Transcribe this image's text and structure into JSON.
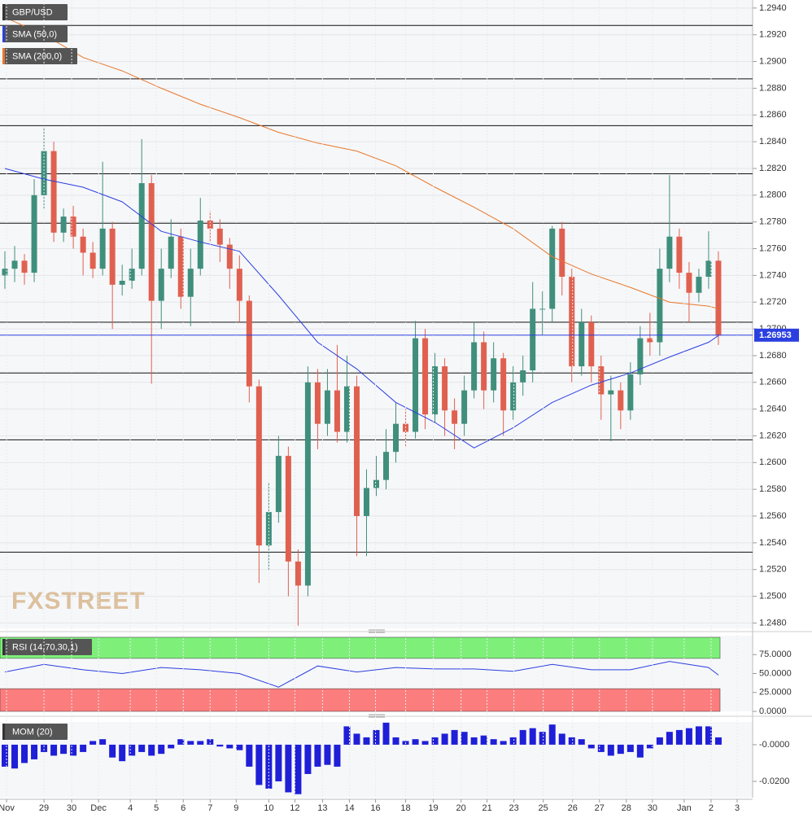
{
  "chart_data": [
    {
      "type": "candlestick",
      "title": "GBP/USD",
      "watermark": "FXSTREET",
      "xlim": [
        0,
        77
      ],
      "ylim": [
        1.2476,
        1.2946
      ],
      "grid": true,
      "yticks": [
        {
          "value": 1.294,
          "label": "1.2940"
        },
        {
          "value": 1.292,
          "label": "1.2920"
        },
        {
          "value": 1.29,
          "label": "1.2900"
        },
        {
          "value": 1.288,
          "label": "1.2880"
        },
        {
          "value": 1.286,
          "label": "1.2860"
        },
        {
          "value": 1.284,
          "label": "1.2840"
        },
        {
          "value": 1.282,
          "label": "1.2820"
        },
        {
          "value": 1.28,
          "label": "1.2800"
        },
        {
          "value": 1.278,
          "label": "1.2780"
        },
        {
          "value": 1.276,
          "label": "1.2760"
        },
        {
          "value": 1.274,
          "label": "1.2740"
        },
        {
          "value": 1.272,
          "label": "1.2720"
        },
        {
          "value": 1.27,
          "label": "1.2700"
        },
        {
          "value": 1.268,
          "label": "1.2680"
        },
        {
          "value": 1.266,
          "label": "1.2660"
        },
        {
          "value": 1.264,
          "label": "1.2640"
        },
        {
          "value": 1.262,
          "label": "1.2620"
        },
        {
          "value": 1.26,
          "label": "1.2600"
        },
        {
          "value": 1.258,
          "label": "1.2580"
        },
        {
          "value": 1.256,
          "label": "1.2560"
        },
        {
          "value": 1.254,
          "label": "1.2540"
        },
        {
          "value": 1.252,
          "label": "1.2520"
        },
        {
          "value": 1.25,
          "label": "1.2500"
        },
        {
          "value": 1.248,
          "label": "1.2480"
        }
      ],
      "up_color": "#3f8f7c",
      "down_color": "#e0604f",
      "candles": [
        [
          1.274,
          1.2758,
          1.273,
          1.2745
        ],
        [
          1.2745,
          1.2762,
          1.2735,
          1.2751
        ],
        [
          1.2751,
          1.2756,
          1.2733,
          1.2742
        ],
        [
          1.2742,
          1.2812,
          1.2735,
          1.28
        ],
        [
          1.28,
          1.2851,
          1.279,
          1.2833
        ],
        [
          1.2833,
          1.284,
          1.2765,
          1.2772
        ],
        [
          1.2772,
          1.279,
          1.2765,
          1.2784
        ],
        [
          1.2784,
          1.2792,
          1.276,
          1.2769
        ],
        [
          1.2769,
          1.2775,
          1.274,
          1.2757
        ],
        [
          1.2757,
          1.2765,
          1.2738,
          1.2745
        ],
        [
          1.2745,
          1.2825,
          1.274,
          1.2775
        ],
        [
          1.2775,
          1.278,
          1.27,
          1.2733
        ],
        [
          1.2733,
          1.2748,
          1.2725,
          1.2736
        ],
        [
          1.2736,
          1.276,
          1.273,
          1.2745
        ],
        [
          1.2745,
          1.2842,
          1.274,
          1.2809
        ],
        [
          1.2809,
          1.2815,
          1.2659,
          1.2721
        ],
        [
          1.2721,
          1.276,
          1.27,
          1.2745
        ],
        [
          1.2745,
          1.2782,
          1.2738,
          1.2769
        ],
        [
          1.2769,
          1.2775,
          1.2715,
          1.2724
        ],
        [
          1.2724,
          1.276,
          1.2702,
          1.2745
        ],
        [
          1.2745,
          1.2798,
          1.274,
          1.2781
        ],
        [
          1.2781,
          1.2788,
          1.2765,
          1.2775
        ],
        [
          1.2775,
          1.2782,
          1.275,
          1.2763
        ],
        [
          1.2763,
          1.2768,
          1.273,
          1.2745
        ],
        [
          1.2745,
          1.2755,
          1.2705,
          1.2721
        ],
        [
          1.2721,
          1.2725,
          1.2645,
          1.2657
        ],
        [
          1.2657,
          1.2662,
          1.251,
          1.2538
        ],
        [
          1.2538,
          1.2585,
          1.252,
          1.2563
        ],
        [
          1.2563,
          1.262,
          1.2555,
          1.2605
        ],
        [
          1.2605,
          1.2612,
          1.25,
          1.2526
        ],
        [
          1.2526,
          1.2535,
          1.2478,
          1.2508
        ],
        [
          1.2508,
          1.2672,
          1.25,
          1.266
        ],
        [
          1.266,
          1.267,
          1.261,
          1.2629
        ],
        [
          1.2629,
          1.267,
          1.262,
          1.2654
        ],
        [
          1.2654,
          1.2688,
          1.2615,
          1.2623
        ],
        [
          1.2623,
          1.268,
          1.2615,
          1.2657
        ],
        [
          1.2657,
          1.2665,
          1.253,
          1.256
        ],
        [
          1.256,
          1.2595,
          1.253,
          1.2581
        ],
        [
          1.2581,
          1.2605,
          1.2575,
          1.2587
        ],
        [
          1.2587,
          1.2625,
          1.258,
          1.2608
        ],
        [
          1.2608,
          1.2645,
          1.26,
          1.2629
        ],
        [
          1.2629,
          1.264,
          1.2612,
          1.2623
        ],
        [
          1.2623,
          1.2706,
          1.2618,
          1.2693
        ],
        [
          1.2693,
          1.27,
          1.2625,
          1.2636
        ],
        [
          1.2636,
          1.2682,
          1.263,
          1.2672
        ],
        [
          1.2672,
          1.2678,
          1.262,
          1.2639
        ],
        [
          1.2639,
          1.2648,
          1.261,
          1.2629
        ],
        [
          1.2629,
          1.2665,
          1.262,
          1.2654
        ],
        [
          1.2654,
          1.2705,
          1.2648,
          1.269
        ],
        [
          1.269,
          1.2698,
          1.264,
          1.2654
        ],
        [
          1.2654,
          1.269,
          1.2645,
          1.2678
        ],
        [
          1.2678,
          1.2682,
          1.262,
          1.2639
        ],
        [
          1.2639,
          1.2672,
          1.2632,
          1.266
        ],
        [
          1.266,
          1.268,
          1.265,
          1.2669
        ],
        [
          1.2669,
          1.2735,
          1.266,
          1.2715
        ],
        [
          1.2715,
          1.2728,
          1.2695,
          1.2715
        ],
        [
          1.2715,
          1.2777,
          1.2705,
          1.2775
        ],
        [
          1.2775,
          1.278,
          1.2725,
          1.2739
        ],
        [
          1.2739,
          1.2745,
          1.266,
          1.2672
        ],
        [
          1.2672,
          1.2715,
          1.2665,
          1.2705
        ],
        [
          1.2705,
          1.271,
          1.266,
          1.2672
        ],
        [
          1.2672,
          1.268,
          1.2632,
          1.2651
        ],
        [
          1.2651,
          1.2665,
          1.2616,
          1.2654
        ],
        [
          1.2654,
          1.266,
          1.2625,
          1.2639
        ],
        [
          1.2639,
          1.2675,
          1.2632,
          1.2666
        ],
        [
          1.2666,
          1.2702,
          1.2658,
          1.2693
        ],
        [
          1.2693,
          1.2712,
          1.268,
          1.269
        ],
        [
          1.269,
          1.276,
          1.268,
          1.2745
        ],
        [
          1.2745,
          1.2815,
          1.2735,
          1.2769
        ],
        [
          1.2769,
          1.2775,
          1.273,
          1.2742
        ],
        [
          1.2742,
          1.275,
          1.2705,
          1.2727
        ],
        [
          1.2727,
          1.2745,
          1.272,
          1.2739
        ],
        [
          1.2739,
          1.2773,
          1.273,
          1.2751
        ],
        [
          1.2751,
          1.2758,
          1.2688,
          1.2695
        ]
      ],
      "series": [
        {
          "name": "SMA (50,0)",
          "color": "#2b3fe0",
          "x": [
            0,
            4,
            8,
            12,
            16,
            20,
            24,
            28,
            32,
            36,
            40,
            44,
            48,
            52,
            56,
            60,
            64,
            68,
            72,
            73
          ],
          "values": [
            1.282,
            1.2812,
            1.2806,
            1.2795,
            1.2773,
            1.2765,
            1.2758,
            1.2725,
            1.269,
            1.267,
            1.2645,
            1.263,
            1.2611,
            1.2626,
            1.2645,
            1.2658,
            1.2667,
            1.2679,
            1.269,
            1.2695
          ]
        },
        {
          "name": "SMA (200,0)",
          "color": "#e8782a",
          "x": [
            0,
            4,
            8,
            12,
            16,
            20,
            24,
            28,
            32,
            36,
            40,
            44,
            48,
            52,
            56,
            60,
            64,
            68,
            72,
            73
          ],
          "values": [
            1.2933,
            1.292,
            1.2903,
            1.2893,
            1.288,
            1.2868,
            1.2858,
            1.2847,
            1.2839,
            1.2833,
            1.2822,
            1.2806,
            1.2791,
            1.2775,
            1.2754,
            1.2741,
            1.2731,
            1.272,
            1.2717,
            1.2715
          ]
        }
      ],
      "levels": [
        1.2927,
        1.2887,
        1.2852,
        1.2816,
        1.2779,
        1.2705,
        1.2667,
        1.2617,
        1.2533
      ],
      "level_color": "#111111",
      "last_price": 1.26953,
      "last_color": "#2b3fe0"
    },
    {
      "type": "line",
      "title": "RSI (14,70,30,1)",
      "xlim": [
        0,
        77
      ],
      "ylim": [
        0,
        100
      ],
      "yticks": [
        {
          "value": 75,
          "label": "75.0000"
        },
        {
          "value": 50,
          "label": "50.0000"
        },
        {
          "value": 25,
          "label": "25.0000"
        },
        {
          "value": 0,
          "label": "0.0000"
        }
      ],
      "upper_band": 70,
      "lower_band": 30,
      "upper_color": "#7ef07a",
      "lower_color": "#fb7d7d",
      "series": [
        {
          "color": "#2b3fe0",
          "x": [
            0,
            4,
            8,
            12,
            16,
            20,
            24,
            28,
            32,
            36,
            40,
            44,
            48,
            52,
            56,
            60,
            64,
            68,
            72,
            73
          ],
          "values": [
            52,
            62,
            55,
            50,
            58,
            55,
            50,
            32,
            60,
            52,
            58,
            56,
            56,
            53,
            62,
            55,
            55,
            66,
            58,
            48
          ]
        }
      ]
    },
    {
      "type": "bar",
      "title": "MOM (20)",
      "xlim": [
        0,
        77
      ],
      "ylim": [
        -0.0289,
        0.0124
      ],
      "color": "#1f1fd8",
      "yticks": [
        {
          "value": 0,
          "label": "-0.0000"
        },
        {
          "value": -0.02,
          "label": "-0.0200"
        }
      ],
      "values": [
        -0.012,
        -0.013,
        -0.01,
        -0.008,
        -0.004,
        -0.006,
        -0.005,
        -0.006,
        -0.004,
        0.002,
        0.003,
        -0.007,
        -0.009,
        -0.006,
        -0.004,
        -0.006,
        -0.005,
        -0.002,
        0.003,
        0.002,
        0.002,
        0.003,
        -0.001,
        -0.002,
        -0.003,
        -0.012,
        -0.022,
        -0.024,
        -0.02,
        -0.026,
        -0.027,
        -0.016,
        -0.012,
        -0.011,
        -0.012,
        0.01,
        0.006,
        0.004,
        0.008,
        0.012,
        0.004,
        0.002,
        0.003,
        0.002,
        0.004,
        0.006,
        0.008,
        0.007,
        0.004,
        0.005,
        0.003,
        0.002,
        0.004,
        0.008,
        0.009,
        0.007,
        0.011,
        0.006,
        0.004,
        0.003,
        -0.002,
        -0.004,
        -0.006,
        -0.005,
        -0.004,
        -0.007,
        -0.002,
        0.004,
        0.007,
        0.008,
        0.009,
        0.01,
        0.01,
        0.004
      ],
      "xticks": [
        {
          "value": 0.67,
          "label": "Nov"
        },
        {
          "value": 4.5,
          "label": "29"
        },
        {
          "value": 7.33,
          "label": "30"
        },
        {
          "value": 10.08,
          "label": "Dec"
        },
        {
          "value": 13.33,
          "label": "4"
        },
        {
          "value": 16,
          "label": "5"
        },
        {
          "value": 18.75,
          "label": "6"
        },
        {
          "value": 21.5,
          "label": "7"
        },
        {
          "value": 24.17,
          "label": "9"
        },
        {
          "value": 27.5,
          "label": "10"
        },
        {
          "value": 30.17,
          "label": "12"
        },
        {
          "value": 33,
          "label": "13"
        },
        {
          "value": 35.75,
          "label": "14"
        },
        {
          "value": 38.42,
          "label": "16"
        },
        {
          "value": 41.5,
          "label": "18"
        },
        {
          "value": 44.33,
          "label": "19"
        },
        {
          "value": 47.17,
          "label": "20"
        },
        {
          "value": 49.83,
          "label": "21"
        },
        {
          "value": 52.58,
          "label": "23"
        },
        {
          "value": 55.58,
          "label": "25"
        },
        {
          "value": 58.58,
          "label": "26"
        },
        {
          "value": 61.33,
          "label": "27"
        },
        {
          "value": 64.08,
          "label": "28"
        },
        {
          "value": 66.75,
          "label": "30"
        },
        {
          "value": 70,
          "label": "Jan"
        },
        {
          "value": 72.75,
          "label": "2"
        },
        {
          "value": 75.42,
          "label": "3"
        }
      ]
    }
  ]
}
